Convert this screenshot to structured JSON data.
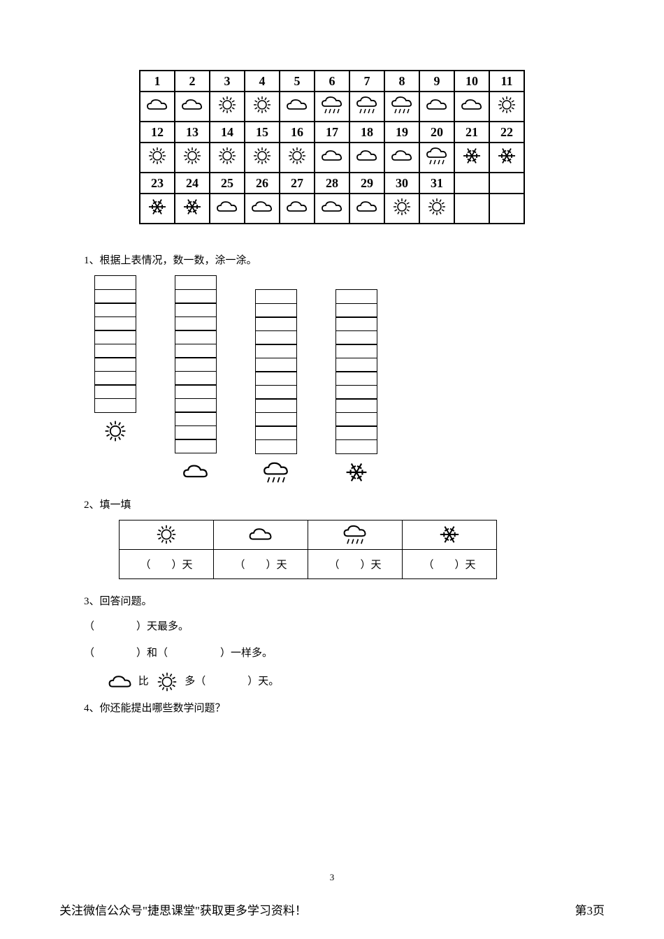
{
  "calendar": {
    "rows": [
      {
        "days": [
          "1",
          "2",
          "3",
          "4",
          "5",
          "6",
          "7",
          "8",
          "9",
          "10",
          "11"
        ],
        "icons": [
          "cloud",
          "cloud",
          "sun",
          "sun",
          "cloud",
          "rain",
          "rain",
          "rain",
          "cloud",
          "cloud",
          "sun"
        ]
      },
      {
        "days": [
          "12",
          "13",
          "14",
          "15",
          "16",
          "17",
          "18",
          "19",
          "20",
          "21",
          "22"
        ],
        "icons": [
          "sun",
          "sun",
          "sun",
          "sun",
          "sun",
          "cloud",
          "cloud",
          "cloud",
          "rain",
          "snow",
          "snow"
        ]
      },
      {
        "days": [
          "23",
          "24",
          "25",
          "26",
          "27",
          "28",
          "29",
          "30",
          "31",
          "",
          ""
        ],
        "icons": [
          "snow",
          "snow",
          "cloud",
          "cloud",
          "cloud",
          "cloud",
          "cloud",
          "sun",
          "sun",
          "",
          ""
        ]
      }
    ]
  },
  "q1": {
    "text": "1、根据上表情况，数一数，涂一涂。",
    "bars": [
      {
        "icon": "sun",
        "cells": 10
      },
      {
        "icon": "cloud",
        "cells": 13
      },
      {
        "icon": "rain",
        "cells": 12,
        "shift": true
      },
      {
        "icon": "snow",
        "cells": 12,
        "shift": true
      }
    ]
  },
  "q2": {
    "text": "2、填一填",
    "headers": [
      "sun",
      "cloud",
      "rain",
      "snow"
    ],
    "cell_template": "（　　）天"
  },
  "q3": {
    "text": "3、回答问题。",
    "line1_a": "（　　　　）",
    "line1_b": "天最多。",
    "line2_a": "（　　　　）",
    "line2_b": "和（　　　　　）一样多。",
    "line3_mid": "比",
    "line3_tail": "多（　　　　）天。"
  },
  "q4": {
    "text": "4、你还能提出哪些数学问题？"
  },
  "page_num": "3",
  "footer_left": "关注微信公众号\"捷思课堂\"获取更多学习资料！",
  "footer_right": "第3页",
  "colors": {
    "stroke": "#000000",
    "bg": "#ffffff"
  }
}
